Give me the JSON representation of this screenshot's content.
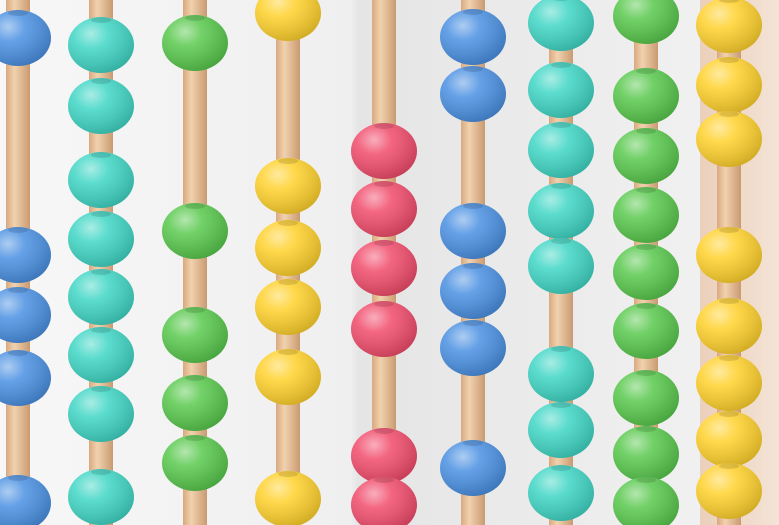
{
  "image": {
    "subject": "",
    "colors": {
      "background": "#f1f1f1",
      "background_shadow": "#dcdcdc",
      "rod": "#e9c6a0",
      "rod_shadow": "#cfa07a",
      "blue": "#4a90e2",
      "teal": "#3fd6c5",
      "green": "#58c84c",
      "yellow": "#ffd12b",
      "pink": "#f14b6b"
    },
    "rods": [
      {
        "name": "rod-1",
        "bead_color": "blue"
      },
      {
        "name": "rod-2",
        "bead_color": "teal"
      },
      {
        "name": "rod-3",
        "bead_color": "green"
      },
      {
        "name": "rod-4",
        "bead_color": "yellow"
      },
      {
        "name": "rod-5",
        "bead_color": "pink"
      },
      {
        "name": "rod-6",
        "bead_color": "blue"
      },
      {
        "name": "rod-7",
        "bead_color": "teal"
      },
      {
        "name": "rod-8",
        "bead_color": "green"
      },
      {
        "name": "rod-9",
        "bead_color": "yellow"
      }
    ]
  }
}
